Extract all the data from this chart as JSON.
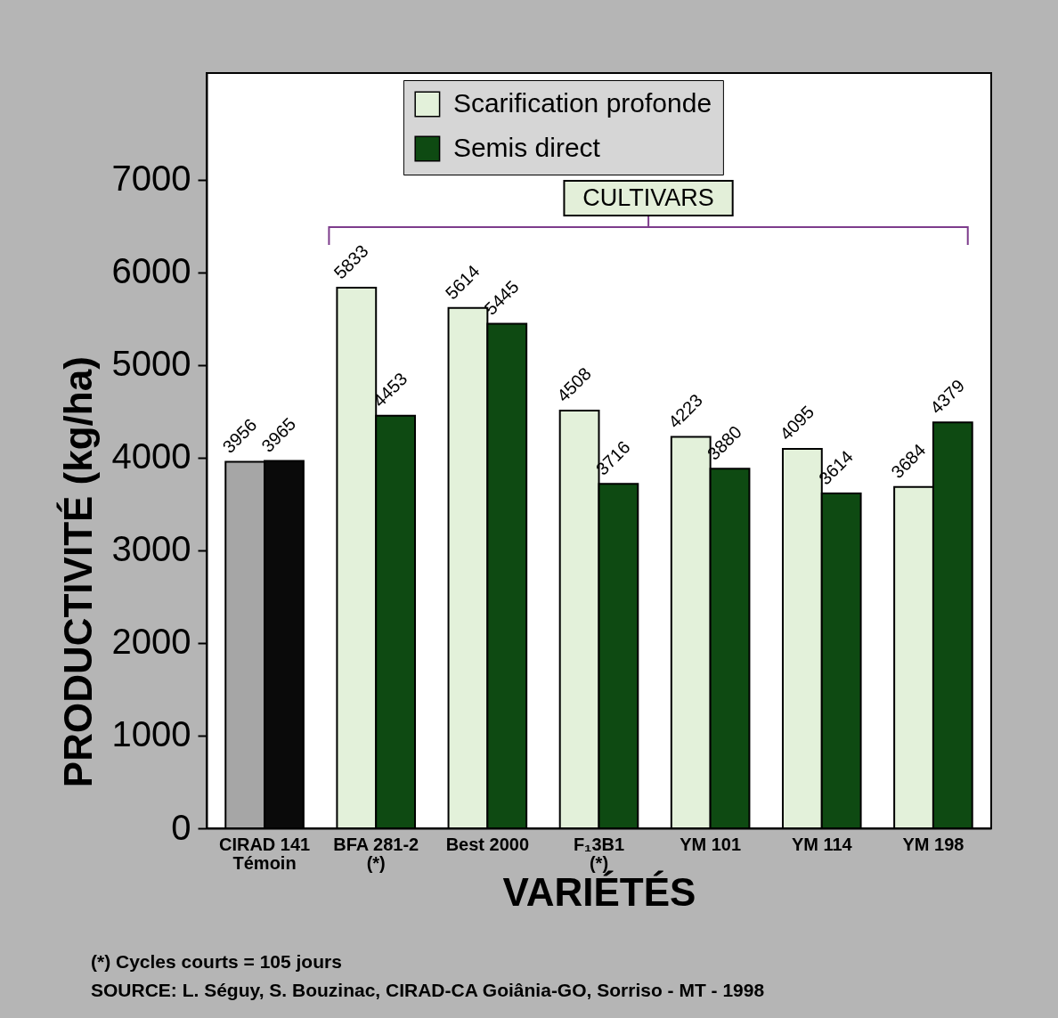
{
  "chart_data": {
    "type": "bar",
    "xlabel": "VARIÉTÉS",
    "ylabel": "PRODUCTIVITÉ (kg/ha)",
    "categories": [
      "CIRAD 141\nTémoin",
      "BFA 281-2\n(*)",
      "Best 2000",
      "F₁3B1\n(*)",
      "YM 101",
      "YM 114",
      "YM 198"
    ],
    "series": [
      {
        "name": "Scarification profonde",
        "color": "#e3f1da",
        "colors": [
          "#a6a6a6",
          "#e3f1da",
          "#e3f1da",
          "#e3f1da",
          "#e3f1da",
          "#e3f1da",
          "#e3f1da"
        ],
        "values": [
          3956,
          5833,
          5614,
          4508,
          4223,
          4095,
          3684
        ]
      },
      {
        "name": "Semis direct",
        "color": "#0e4a12",
        "colors": [
          "#0a0a0a",
          "#0e4a12",
          "#0e4a12",
          "#0e4a12",
          "#0e4a12",
          "#0e4a12",
          "#0e4a12"
        ],
        "values": [
          3965,
          4453,
          5445,
          3716,
          3880,
          3614,
          4379
        ]
      }
    ],
    "ylim": [
      0,
      8150
    ],
    "yticks": [
      0,
      1000,
      2000,
      3000,
      4000,
      5000,
      6000,
      7000
    ],
    "data_labels": true,
    "legend": "top",
    "annotations": [
      "CULTIVARS",
      "(*) Cycles courts = 105 jours",
      "SOURCE: L. Séguy, S. Bouzinac, CIRAD-CA Goiânia-GO, Sorriso - MT - 1998"
    ]
  }
}
